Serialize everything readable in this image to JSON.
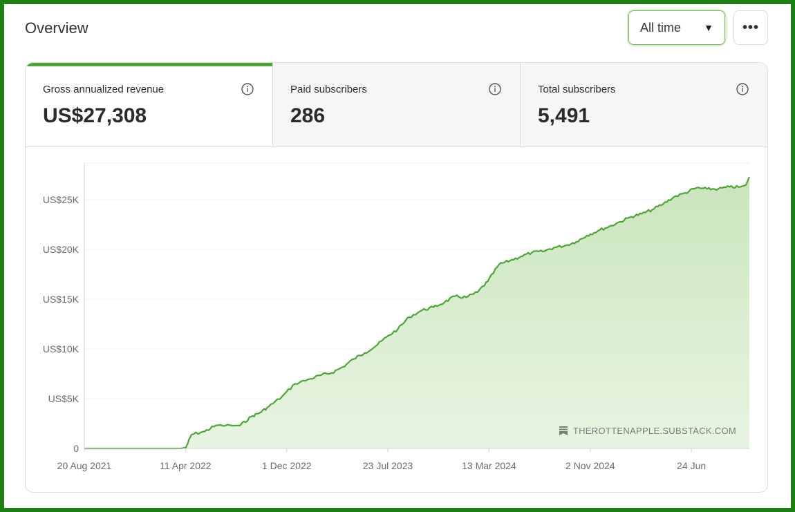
{
  "header": {
    "title": "Overview",
    "range_value": "All time",
    "more_label": "•••"
  },
  "stats": [
    {
      "label": "Gross annualized revenue",
      "value": "US$27,308"
    },
    {
      "label": "Paid subscribers",
      "value": "286"
    },
    {
      "label": "Total subscribers",
      "value": "5,491"
    }
  ],
  "colors": {
    "accent": "#4ca536",
    "fill": "#cde8c3",
    "frame": "#1f7f15"
  },
  "watermark": "THEROTTENAPPLE.SUBSTACK.COM",
  "chart_data": {
    "type": "area",
    "xlabel": "",
    "ylabel": "",
    "x_tick_labels": [
      "20 Aug 2021",
      "11 Apr 2022",
      "1 Dec 2022",
      "23 Jul 2023",
      "13 Mar 2024",
      "2 Nov 2024",
      "24 Jun"
    ],
    "y_tick_labels": [
      "0",
      "US$5K",
      "US$10K",
      "US$15K",
      "US$20K",
      "US$25K"
    ],
    "y_ticks": [
      0,
      5000,
      10000,
      15000,
      20000,
      25000
    ],
    "ylim": [
      0,
      28700
    ],
    "x_start": "2021-08-20",
    "x_end": "2025-11-05",
    "x_tick_dates": [
      "2021-08-20",
      "2022-04-11",
      "2022-12-01",
      "2023-07-23",
      "2024-03-13",
      "2024-11-02",
      "2025-06-24"
    ],
    "grid": true,
    "series": [
      {
        "x": [
          "2021-08-20",
          "2022-04-01",
          "2022-04-12",
          "2022-04-25",
          "2022-05-25",
          "2022-06-20",
          "2022-08-15",
          "2022-09-10",
          "2022-09-30",
          "2022-10-20",
          "2022-11-20",
          "2022-12-20",
          "2023-01-25",
          "2023-02-20",
          "2023-03-15",
          "2023-04-10",
          "2023-05-05",
          "2023-05-30",
          "2023-06-25",
          "2023-07-20",
          "2023-08-15",
          "2023-09-10",
          "2023-10-10",
          "2023-11-05",
          "2023-12-01",
          "2023-12-25",
          "2024-01-20",
          "2024-02-15",
          "2024-03-10",
          "2024-04-05",
          "2024-05-01",
          "2024-05-25",
          "2024-06-20",
          "2024-07-15",
          "2024-08-10",
          "2024-09-05",
          "2024-10-01",
          "2024-10-25",
          "2024-11-20",
          "2024-12-15",
          "2025-01-10",
          "2025-02-05",
          "2025-03-01",
          "2025-03-25",
          "2025-04-20",
          "2025-05-15",
          "2025-06-10",
          "2025-07-05",
          "2025-07-30",
          "2025-08-25",
          "2025-09-20",
          "2025-10-15",
          "2025-10-28",
          "2025-11-05"
        ],
        "values": [
          0,
          0,
          100,
          1400,
          1700,
          2300,
          2300,
          3200,
          3600,
          4200,
          5200,
          6500,
          7000,
          7400,
          7600,
          8200,
          9000,
          9600,
          10300,
          11200,
          12000,
          13200,
          13900,
          14200,
          14700,
          15300,
          15200,
          15700,
          16800,
          18500,
          18900,
          19300,
          19700,
          19800,
          20200,
          20400,
          20800,
          21400,
          21900,
          22300,
          22800,
          23300,
          23600,
          24000,
          24600,
          25300,
          25700,
          26200,
          26100,
          26100,
          26300,
          26300,
          26500,
          27308
        ]
      }
    ]
  }
}
